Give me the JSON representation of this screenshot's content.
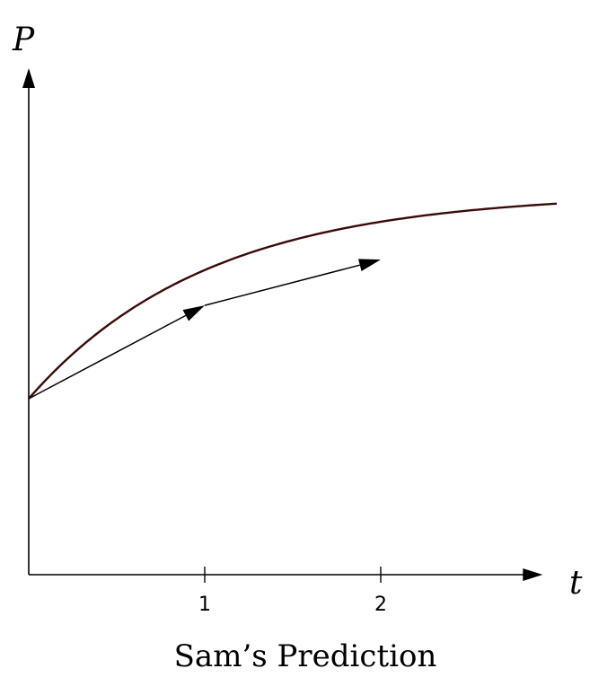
{
  "chart_data": {
    "type": "line",
    "title": "",
    "caption": "Sam’s Prediction",
    "xlabel": "t",
    "ylabel": "P",
    "xlim": [
      0,
      2.92
    ],
    "ylim": [
      0,
      3
    ],
    "xticks": [
      {
        "value": 1,
        "label": "1"
      },
      {
        "value": 2,
        "label": "2"
      }
    ],
    "grid": false,
    "legend": "none",
    "curve": {
      "start": [
        0,
        1
      ],
      "limit": 2.17,
      "rate": 0.98,
      "x_end": 3.0,
      "color": "#3a0a0a"
    },
    "arrows": [
      {
        "from": [
          0,
          1
        ],
        "to": [
          1,
          1.53
        ]
      },
      {
        "from": [
          1,
          1.53
        ],
        "to": [
          2,
          1.79
        ]
      }
    ],
    "arrow_color": "#000000"
  }
}
